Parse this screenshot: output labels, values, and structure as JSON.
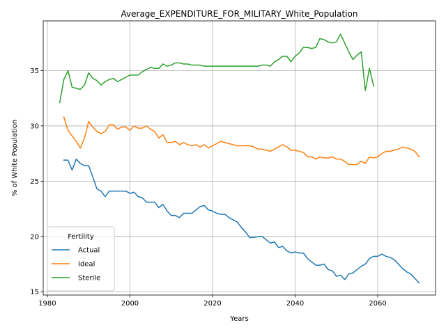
{
  "chart_data": {
    "type": "line",
    "title": "Average_EXPENDITURE_FOR_MILITARY_White_Population",
    "xlabel": "Years",
    "ylabel": "% of White Population",
    "xlim": [
      1979,
      2074
    ],
    "ylim": [
      14.7,
      39.5
    ],
    "xticks": [
      1980,
      2000,
      2020,
      2040,
      2060
    ],
    "yticks": [
      15,
      20,
      25,
      30,
      35
    ],
    "grid": true,
    "legend": {
      "title": "Fertility",
      "placement": "lower-left"
    },
    "colors": {
      "Actual": "#1f77b4",
      "Ideal": "#ff7f0e",
      "Sterile": "#2ca02c"
    },
    "series": [
      {
        "name": "Actual",
        "x": [
          1984,
          1985,
          1986,
          1987,
          1988,
          1989,
          1990,
          1991,
          1992,
          1993,
          1994,
          1995,
          1996,
          1997,
          1998,
          1999,
          2000,
          2001,
          2002,
          2003,
          2004,
          2005,
          2006,
          2007,
          2008,
          2009,
          2010,
          2011,
          2012,
          2013,
          2014,
          2015,
          2016,
          2017,
          2018,
          2019,
          2020,
          2021,
          2022,
          2023,
          2024,
          2025,
          2026,
          2027,
          2028,
          2029,
          2030,
          2031,
          2032,
          2033,
          2034,
          2035,
          2036,
          2037,
          2038,
          2039,
          2040,
          2041,
          2042,
          2043,
          2044,
          2045,
          2046,
          2047,
          2048,
          2049,
          2050,
          2051,
          2052,
          2053,
          2054,
          2055,
          2056,
          2057,
          2058,
          2059,
          2060,
          2061,
          2062,
          2063,
          2064,
          2065,
          2066,
          2067,
          2068,
          2069,
          2070
        ],
        "y": [
          26.9,
          26.9,
          26.0,
          27.0,
          26.6,
          26.4,
          26.4,
          25.4,
          24.3,
          24.1,
          23.6,
          24.1,
          24.1,
          24.1,
          24.1,
          24.1,
          23.9,
          24.0,
          23.6,
          23.5,
          23.1,
          23.1,
          23.1,
          22.6,
          22.9,
          22.3,
          21.9,
          21.9,
          21.7,
          22.1,
          22.1,
          22.1,
          22.4,
          22.7,
          22.8,
          22.4,
          22.3,
          22.1,
          22.0,
          22.0,
          21.7,
          21.5,
          21.3,
          20.8,
          20.4,
          19.9,
          19.9,
          20.0,
          20.0,
          19.7,
          19.4,
          19.5,
          19.0,
          19.1,
          18.7,
          18.5,
          18.6,
          18.5,
          18.5,
          18.0,
          17.7,
          17.4,
          17.4,
          17.5,
          17.0,
          16.9,
          16.4,
          16.5,
          16.1,
          16.6,
          16.7,
          17.0,
          17.3,
          17.5,
          18.0,
          18.2,
          18.2,
          18.4,
          18.2,
          18.1,
          17.9,
          17.5,
          17.1,
          16.8,
          16.6,
          16.2,
          15.8
        ]
      },
      {
        "name": "Ideal",
        "x": [
          1984,
          1985,
          1986,
          1987,
          1988,
          1989,
          1990,
          1991,
          1992,
          1993,
          1994,
          1995,
          1996,
          1997,
          1998,
          1999,
          2000,
          2001,
          2002,
          2003,
          2004,
          2005,
          2006,
          2007,
          2008,
          2009,
          2010,
          2011,
          2012,
          2013,
          2014,
          2015,
          2016,
          2017,
          2018,
          2019,
          2020,
          2021,
          2022,
          2023,
          2024,
          2025,
          2026,
          2027,
          2028,
          2029,
          2030,
          2031,
          2032,
          2033,
          2034,
          2035,
          2036,
          2037,
          2038,
          2039,
          2040,
          2041,
          2042,
          2043,
          2044,
          2045,
          2046,
          2047,
          2048,
          2049,
          2050,
          2051,
          2052,
          2053,
          2054,
          2055,
          2056,
          2057,
          2058,
          2059,
          2060,
          2061,
          2062,
          2063,
          2064,
          2065,
          2066,
          2067,
          2068,
          2069,
          2070
        ],
        "y": [
          30.8,
          29.6,
          29.1,
          28.6,
          28.0,
          28.9,
          30.4,
          29.9,
          29.5,
          29.3,
          29.5,
          30.1,
          30.1,
          29.7,
          29.9,
          29.9,
          29.6,
          30.0,
          29.8,
          29.8,
          30.0,
          29.7,
          29.5,
          28.9,
          29.2,
          28.5,
          28.5,
          28.6,
          28.3,
          28.5,
          28.3,
          28.2,
          28.3,
          28.1,
          28.3,
          28.0,
          28.2,
          28.4,
          28.6,
          28.5,
          28.4,
          28.3,
          28.2,
          28.2,
          28.2,
          28.2,
          28.1,
          27.9,
          27.9,
          27.8,
          27.7,
          27.9,
          28.1,
          28.3,
          28.1,
          27.8,
          27.8,
          27.7,
          27.6,
          27.2,
          27.2,
          27.0,
          27.2,
          27.1,
          27.1,
          27.2,
          27.0,
          27.0,
          26.8,
          26.5,
          26.5,
          26.5,
          26.8,
          26.6,
          27.2,
          27.1,
          27.2,
          27.5,
          27.7,
          27.7,
          27.8,
          27.9,
          28.1,
          28.0,
          27.9,
          27.7,
          27.2
        ]
      },
      {
        "name": "Sterile",
        "x": [
          1983,
          1984,
          1985,
          1986,
          1987,
          1988,
          1989,
          1990,
          1991,
          1992,
          1993,
          1994,
          1995,
          1996,
          1997,
          1998,
          1999,
          2000,
          2001,
          2002,
          2003,
          2004,
          2005,
          2006,
          2007,
          2008,
          2009,
          2010,
          2011,
          2012,
          2013,
          2014,
          2015,
          2016,
          2017,
          2018,
          2019,
          2020,
          2021,
          2022,
          2023,
          2024,
          2025,
          2026,
          2027,
          2028,
          2029,
          2030,
          2031,
          2032,
          2033,
          2034,
          2035,
          2036,
          2037,
          2038,
          2039,
          2040,
          2041,
          2042,
          2043,
          2044,
          2045,
          2046,
          2047,
          2048,
          2049,
          2050,
          2051,
          2052,
          2053,
          2054,
          2055,
          2056,
          2057,
          2058,
          2059
        ],
        "y": [
          32.1,
          34.2,
          35.0,
          33.5,
          33.4,
          33.3,
          33.7,
          34.8,
          34.3,
          34.1,
          33.7,
          34.0,
          34.2,
          34.3,
          34.0,
          34.2,
          34.4,
          34.6,
          34.6,
          34.6,
          34.9,
          35.1,
          35.3,
          35.2,
          35.2,
          35.6,
          35.4,
          35.5,
          35.7,
          35.7,
          35.6,
          35.6,
          35.5,
          35.5,
          35.5,
          35.4,
          35.4,
          35.4,
          35.4,
          35.4,
          35.4,
          35.4,
          35.4,
          35.4,
          35.4,
          35.4,
          35.4,
          35.4,
          35.4,
          35.5,
          35.5,
          35.4,
          35.8,
          36.0,
          36.3,
          36.3,
          35.8,
          36.3,
          36.6,
          37.1,
          37.1,
          37.0,
          37.1,
          37.9,
          37.8,
          37.6,
          37.5,
          37.6,
          38.3,
          37.5,
          36.7,
          36.0,
          36.4,
          36.7,
          33.2,
          35.2,
          33.6
        ]
      }
    ]
  }
}
